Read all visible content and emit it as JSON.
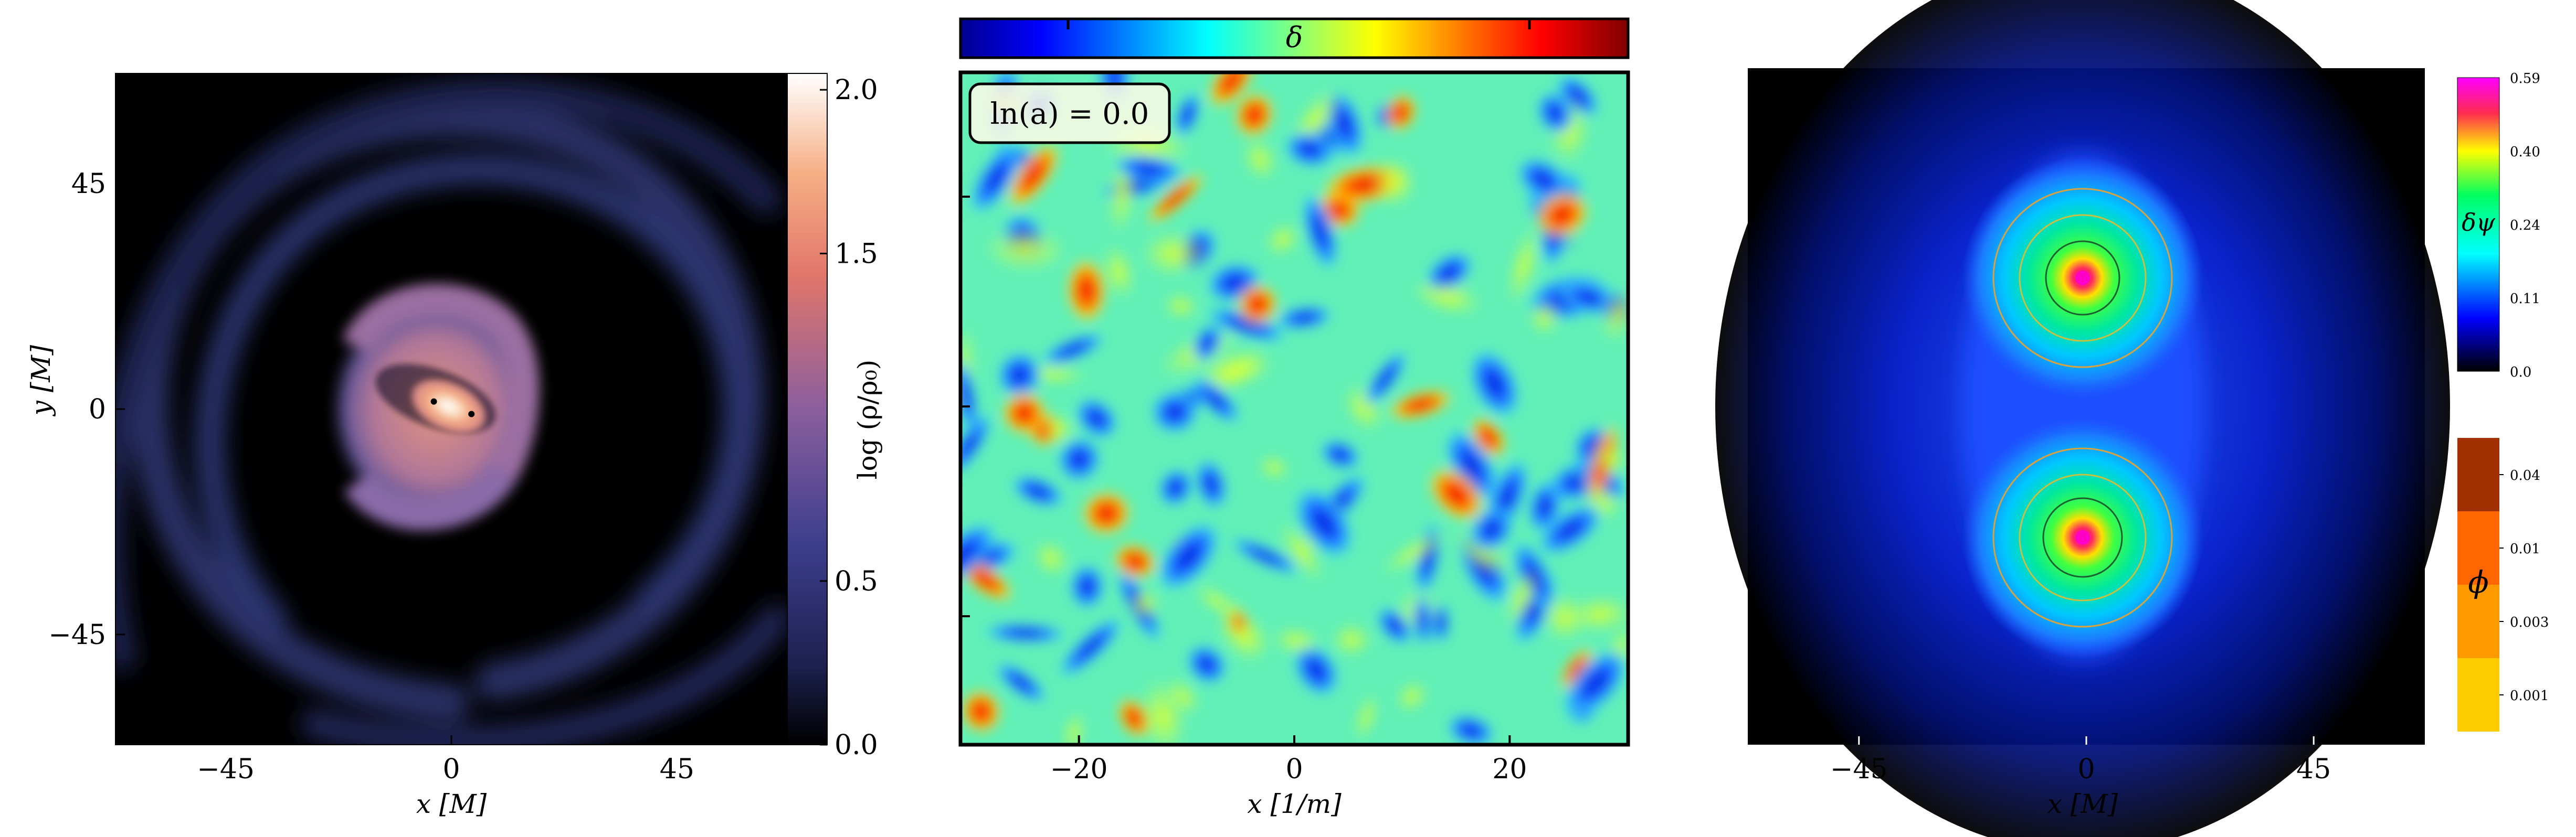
{
  "chart_data": [
    {
      "type": "heatmap",
      "panel": "left",
      "xlabel": "x [M]",
      "ylabel": "y [M]",
      "xticks": [
        -45,
        0,
        45
      ],
      "yticks": [
        -45,
        0,
        45
      ],
      "xlim": [
        -67,
        67
      ],
      "ylim": [
        -67,
        67
      ],
      "colorbar": {
        "label": "log (ρ/ρ₀)",
        "ticks": [
          0.0,
          0.5,
          1.5,
          2.0
        ],
        "range": [
          0.0,
          2.05
        ]
      },
      "points": [
        {
          "x": -3.5,
          "y": 1.5
        },
        {
          "x": 4.0,
          "y": -1.0
        }
      ]
    },
    {
      "type": "heatmap",
      "panel": "middle",
      "xlabel": "x [1/m]",
      "ylabel": "",
      "xticks": [
        -20,
        0,
        20
      ],
      "xlim": [
        -31,
        31
      ],
      "annotation": "ln(a) = 0.0",
      "colorbar": {
        "label": "δ",
        "orientation": "horizontal",
        "position": "top"
      }
    },
    {
      "type": "heatmap",
      "panel": "right",
      "xlabel": "x [M]",
      "ylabel": "",
      "xticks": [
        -45,
        0,
        45
      ],
      "xlim": [
        -67,
        67
      ],
      "colorbar_psi": {
        "label": "δψ",
        "ticks": [
          "0.59",
          "0.40",
          "0.24",
          "0.11",
          "0.0"
        ]
      },
      "colorbar_phi": {
        "label": "ϕ",
        "ticks": [
          "0.04",
          "0.01",
          "0.003",
          "0.001"
        ]
      },
      "sources": [
        {
          "x": 0,
          "y": 25
        },
        {
          "x": 0,
          "y": -25
        }
      ]
    }
  ],
  "text": {
    "left_x_label": "x [M]",
    "left_y_label": "y [M]",
    "left_cbar_label": "log (ρ/ρ₀)",
    "mid_x_label": "x [1/m]",
    "mid_annotation": "ln(a) = 0.0",
    "mid_cbar_label": "δ",
    "right_x_label": "x [M]",
    "psi_label": "δψ",
    "phi_label": "ϕ"
  },
  "colors": {
    "density_cmap": [
      "#000000",
      "#262b5c",
      "#3c3f8a",
      "#8a5a9c",
      "#d97a6f",
      "#f5b58a",
      "#ffffff"
    ],
    "jet_cmap": [
      "#00008f",
      "#0000ff",
      "#00ffff",
      "#ffff00",
      "#ff0000",
      "#800000"
    ],
    "psi_cmap": [
      "#000000",
      "#0000ff",
      "#00ffff",
      "#00ff66",
      "#ffff00",
      "#ff2060",
      "#ff00ff"
    ],
    "phi_cmap": [
      "#ffcc00",
      "#ff9900",
      "#ff6600",
      "#a03000"
    ]
  }
}
